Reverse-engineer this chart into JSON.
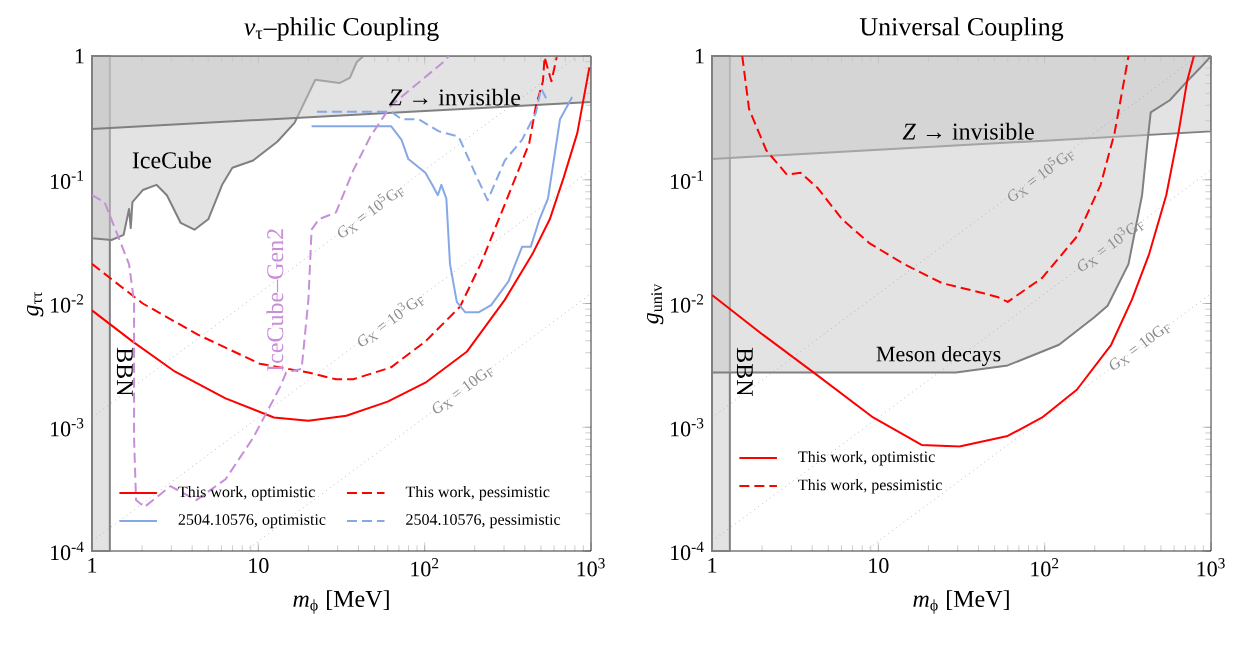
{
  "chart_data": [
    {
      "type": "line",
      "title": "*ν*$_{τ}$–philic Coupling",
      "xlabel": "*m*$_{ϕ}$ [MeV]",
      "ylabel": "*g*$_{ττ}$",
      "log": "xy",
      "legend": "bottom",
      "xlim": [
        1,
        1000
      ],
      "ylim": [
        0.0001,
        1
      ],
      "xticks": [
        {
          "value": 1,
          "label": "1"
        },
        {
          "value": 10,
          "label": "10"
        },
        {
          "value": 100,
          "label": "10$^{2}$"
        },
        {
          "value": 1000,
          "label": "10$^{3}$"
        }
      ],
      "yticks": [
        {
          "value": 0.0001,
          "label": "10$^{-4}$"
        },
        {
          "value": 0.001,
          "label": "10$^{-3}$"
        },
        {
          "value": 0.01,
          "label": "10$^{-2}$"
        },
        {
          "value": 0.1,
          "label": "10$^{-1}$"
        },
        {
          "value": 1,
          "label": "1"
        }
      ],
      "series": [
        {
          "name": "This work, optimistic",
          "color": "#ff0000",
          "line_style": "solid",
          "x": [
            1,
            1.75,
            3.1,
            6.35,
            12.4,
            20,
            33.8,
            59.9,
            101,
            179,
            303,
            445,
            565,
            684,
            827,
            978
          ],
          "values": [
            0.0088,
            0.00494,
            0.00286,
            0.00171,
            0.0012,
            0.00113,
            0.00124,
            0.00161,
            0.00229,
            0.00407,
            0.0107,
            0.0252,
            0.0479,
            0.1035,
            0.238,
            0.81
          ]
        },
        {
          "name": "This work, pessimistic",
          "color": "#ff0000",
          "line_style": "dashed",
          "x": [
            1,
            2.02,
            4.33,
            10.2,
            20,
            29.3,
            37.1,
            62.8,
            101,
            163,
            217,
            319,
            425,
            467,
            514,
            526,
            578,
            622
          ],
          "values": [
            0.0209,
            0.01,
            0.0056,
            0.00326,
            0.00277,
            0.00244,
            0.00244,
            0.00305,
            0.00494,
            0.0094,
            0.0208,
            0.075,
            0.197,
            0.398,
            0.624,
            0.98,
            0.624,
            0.98
          ]
        },
        {
          "name": "2504.10576, optimistic",
          "color": "#86a8e7",
          "line_style": "solid",
          "x": [
            20.9,
            62.8,
            72.6,
            79.8,
            101,
            111,
            120,
            126,
            135,
            142,
            156,
            175,
            212,
            251,
            319,
            385,
            434,
            490,
            551,
            651,
            771
          ],
          "values": [
            0.271,
            0.271,
            0.21,
            0.147,
            0.114,
            0.091,
            0.075,
            0.091,
            0.0704,
            0.0208,
            0.0103,
            0.0085,
            0.0085,
            0.0097,
            0.0151,
            0.0287,
            0.0287,
            0.0479,
            0.0704,
            0.308,
            0.467
          ]
        },
        {
          "name": "2504.10576, pessimistic",
          "color": "#86a8e7",
          "line_style": "dashed",
          "x": [
            22.5,
            62.8,
            72.6,
            92,
            122,
            160,
            198,
            239,
            303,
            385,
            467,
            501,
            538
          ],
          "values": [
            0.355,
            0.355,
            0.308,
            0.308,
            0.246,
            0.223,
            0.118,
            0.0682,
            0.143,
            0.21,
            0.35,
            0.548,
            0.453
          ]
        },
        {
          "name": "IceCube–Gen2",
          "color": "#c88fd8",
          "line_style": "dashed",
          "x": [
            1,
            1.19,
            1.67,
            1.79,
            1.79,
            1.84,
            2.07,
            2.96,
            4.24,
            6.35,
            9.3,
            13.6,
            14.7,
            18.2,
            20,
            20.9,
            23.1,
            29.3,
            37.1,
            47.1,
            62.8,
            129,
            140
          ],
          "values": [
            0.075,
            0.066,
            0.0208,
            0.0103,
            0.00082,
            0.000258,
            0.000227,
            0.000334,
            0.000258,
            0.00038,
            0.00082,
            0.00215,
            0.00277,
            0.00296,
            0.0107,
            0.0395,
            0.0479,
            0.0545,
            0.118,
            0.223,
            0.398,
            0.89,
            1
          ]
        },
        {
          "type": "area",
          "color": "#e3e3e3",
          "x": [
            1,
            1,
            1.31,
            1.55,
            1.67,
            1.71,
            1.75,
            2.02,
            2.44,
            2.82,
            3.41,
            4.13,
            5.0,
            6.06,
            6.98,
            9.3,
            13.0,
            16.5,
            22.0,
            30.7,
            35.5,
            39.0,
            42.9
          ],
          "values": [
            1,
            0.0336,
            0.0326,
            0.0359,
            0.058,
            0.0407,
            0.066,
            0.0826,
            0.091,
            0.075,
            0.0449,
            0.0395,
            0.0479,
            0.091,
            0.125,
            0.143,
            0.203,
            0.288,
            0.643,
            0.604,
            0.665,
            0.89,
            1
          ]
        },
        {
          "type": "area",
          "color": "#e3e3e3",
          "x": [
            1,
            1,
            10,
            100,
            1000,
            1000
          ],
          "values": [
            1,
            0.257,
            0.304,
            0.359,
            0.425,
            1
          ]
        },
        {
          "color": "#999999",
          "line_style": "dotted",
          "x": [
            1,
            833
          ],
          "values": [
            0.0012,
            1
          ]
        },
        {
          "color": "#999999",
          "line_style": "dotted",
          "x": [
            1,
            1000
          ],
          "values": [
            0.00012,
            0.12
          ]
        },
        {
          "color": "#999999",
          "line_style": "dotted",
          "x": [
            8.33,
            1000
          ],
          "values": [
            0.0001,
            0.012
          ]
        }
      ],
      "bands": [
        {
          "axis": "x",
          "from": 1,
          "to": 1.28,
          "label": "BBN",
          "color": "#e3e3e3"
        }
      ],
      "annotations": [
        "IceCube",
        "*Z* → invisible",
        {
          "text": "*G*$_{X}$ = 10$^{5}$G$_{F}$",
          "x": 47,
          "y": 0.056
        },
        {
          "text": "*G*$_{X}$ = 10$^{3}$G$_{F}$",
          "x": 62,
          "y": 0.0074
        },
        {
          "text": "*G*$_{X}$ = 10G$_{F}$",
          "x": 170,
          "y": 0.002
        }
      ]
    },
    {
      "type": "line",
      "title": "Universal Coupling",
      "xlabel": "*m*$_{ϕ}$ [MeV]",
      "ylabel": "*g*$_{univ}$",
      "log": "xy",
      "legend": "bottom left",
      "xlim": [
        1,
        1000
      ],
      "ylim": [
        0.0001,
        1
      ],
      "xticks": [
        {
          "value": 1,
          "label": "1"
        },
        {
          "value": 10,
          "label": "10"
        },
        {
          "value": 100,
          "label": "10$^{2}$"
        },
        {
          "value": 1000,
          "label": "10$^{3}$"
        }
      ],
      "yticks": [
        {
          "value": 0.0001,
          "label": "10$^{-4}$"
        },
        {
          "value": 0.001,
          "label": "10$^{-3}$"
        },
        {
          "value": 0.01,
          "label": "10$^{-2}$"
        },
        {
          "value": 0.1,
          "label": "10$^{-1}$"
        },
        {
          "value": 1,
          "label": "1"
        }
      ],
      "series": [
        {
          "name": "This work, optimistic",
          "color": "#ff0000",
          "line_style": "solid",
          "x": [
            1,
            2.02,
            4.13,
            9.3,
            18.2,
            30.7,
            59.9,
            96.6,
            156,
            251,
            334,
            425,
            538,
            637,
            718,
            789
          ],
          "values": [
            0.0117,
            0.0056,
            0.00274,
            0.0012,
            0.00072,
            0.0007,
            0.00085,
            0.0012,
            0.00201,
            0.00464,
            0.0107,
            0.0252,
            0.075,
            0.238,
            0.624,
            1
          ]
        },
        {
          "name": "This work, pessimistic",
          "color": "#ff0000",
          "line_style": "dashed",
          "x": [
            1.52,
            1.67,
            2.12,
            2.82,
            3.41,
            4.33,
            6.06,
            8.87,
            14.3,
            24.2,
            42.9,
            51.9,
            59.9,
            96.6,
            156,
            217,
            263,
            297,
            319
          ],
          "values": [
            1,
            0.373,
            0.173,
            0.11,
            0.114,
            0.0853,
            0.0479,
            0.0306,
            0.0208,
            0.0146,
            0.0121,
            0.0113,
            0.0103,
            0.0161,
            0.0347,
            0.091,
            0.238,
            0.585,
            1
          ]
        },
        {
          "type": "area",
          "color": "#e3e3e3",
          "x": [
            1,
            1,
            10,
            100,
            1000,
            1000
          ],
          "values": [
            1,
            0.147,
            0.175,
            0.207,
            0.246,
            1
          ]
        },
        {
          "type": "area",
          "color": "#e3e3e3",
          "x": [
            1,
            1,
            29.3,
            59.9,
            122,
            198,
            239,
            319,
            385,
            414,
            434,
            565,
            718,
            868,
            1000
          ],
          "values": [
            1,
            0.00277,
            0.00277,
            0.00316,
            0.00464,
            0.0077,
            0.0096,
            0.0208,
            0.075,
            0.197,
            0.35,
            0.439,
            0.624,
            0.81,
            1
          ]
        },
        {
          "color": "#999999",
          "line_style": "dotted",
          "x": [
            1,
            833
          ],
          "values": [
            0.0012,
            1
          ]
        },
        {
          "color": "#999999",
          "line_style": "dotted",
          "x": [
            1,
            1000
          ],
          "values": [
            0.00012,
            0.12
          ]
        },
        {
          "color": "#999999",
          "line_style": "dotted",
          "x": [
            8.33,
            1000
          ],
          "values": [
            0.0001,
            0.012
          ]
        }
      ],
      "bands": [
        {
          "axis": "x",
          "from": 1,
          "to": 1.28,
          "label": "BBN",
          "color": "#e3e3e3"
        }
      ],
      "annotations": [
        "*Z* → invisible",
        "Meson decays",
        {
          "text": "*G*$_{X}$ = 10$^{5}$G$_{F}$",
          "x": 94,
          "y": 0.11
        },
        {
          "text": "*G*$_{X}$ = 10$^{3}$G$_{F}$",
          "x": 247,
          "y": 0.03
        },
        {
          "text": "*G*$_{X}$ = 10G$_{F}$",
          "x": 374,
          "y": 0.0045
        }
      ]
    }
  ]
}
